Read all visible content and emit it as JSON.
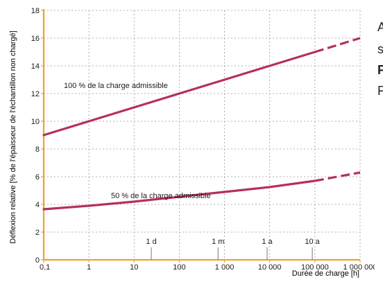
{
  "chart_data": {
    "type": "line",
    "title": "",
    "xlabel": "Durée de charge [h]",
    "ylabel": "Déflexion relative [% de l'épaisseur de l'échantillon non chargé]",
    "x_scale": "log",
    "xlim": [
      0.1,
      1000000
    ],
    "ylim": [
      0,
      18
    ],
    "x_ticks": [
      0.1,
      1,
      10,
      100,
      1000,
      10000,
      100000,
      1000000
    ],
    "x_tick_labels": [
      "0,1",
      "1",
      "10",
      "100",
      "1 000",
      "10 000",
      "100 000",
      "1 000 000"
    ],
    "y_ticks": [
      0,
      2,
      4,
      6,
      8,
      10,
      12,
      14,
      16,
      18
    ],
    "y_tick_labels": [
      "0",
      "2",
      "4",
      "6",
      "8",
      "10",
      "12",
      "14",
      "16",
      "18"
    ],
    "grid": true,
    "colors": {
      "series": "#b5305a",
      "axis": "#f0a030",
      "grid": "#999999"
    },
    "series": [
      {
        "name": "100 % de la charge admissible",
        "x": [
          0.1,
          1,
          10,
          100,
          1000,
          10000,
          100000,
          1000000
        ],
        "y": [
          9.0,
          10.0,
          11.0,
          12.0,
          13.0,
          14.0,
          15.0,
          16.0
        ],
        "solid_until": 100000
      },
      {
        "name": "50 % de la charge admissible",
        "x": [
          0.1,
          1,
          10,
          100,
          1000,
          10000,
          100000,
          1000000
        ],
        "y": [
          3.65,
          3.9,
          4.2,
          4.55,
          4.9,
          5.25,
          5.7,
          6.3
        ],
        "solid_until": 100000
      }
    ],
    "time_markers": [
      {
        "label": "1 d",
        "x": 24
      },
      {
        "label": "1 m",
        "x": 720
      },
      {
        "label": "1 a",
        "x": 8760
      },
      {
        "label": "10 a",
        "x": 87600
      }
    ]
  },
  "side_text": [
    "A",
    "s",
    "F",
    "F"
  ]
}
